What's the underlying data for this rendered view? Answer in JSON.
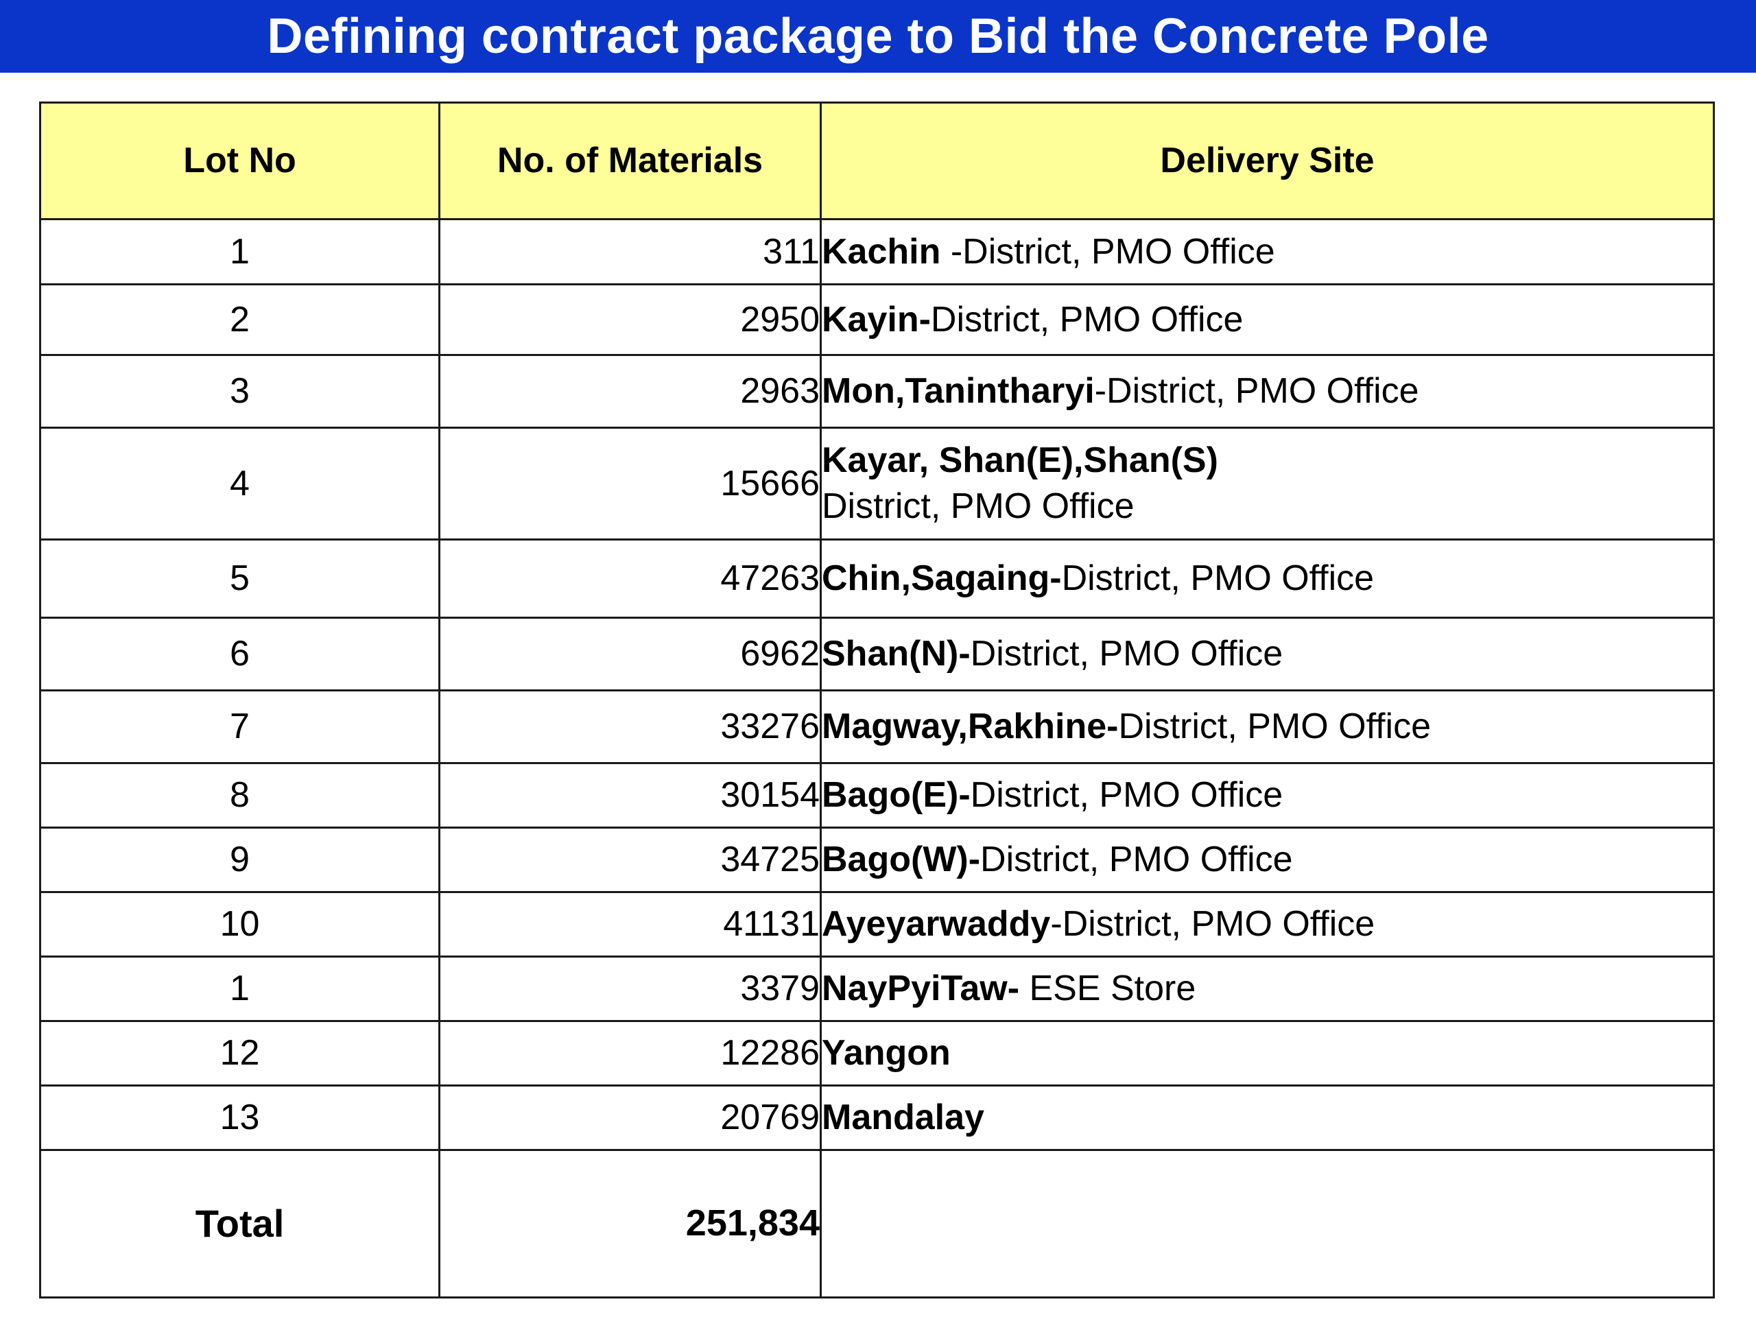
{
  "title": "Defining contract package to Bid the Concrete Pole",
  "table": {
    "headers": {
      "lot_no": "Lot No",
      "materials": "No. of Materials",
      "delivery_site": "Delivery Site"
    },
    "rows": [
      {
        "lot": "1",
        "qty": "311",
        "site_bold": "Kachin",
        "site_rest": " -District, PMO Office",
        "site_line2": ""
      },
      {
        "lot": "2",
        "qty": "2950",
        "site_bold": "Kayin-",
        "site_rest": "District, PMO Office",
        "site_line2": ""
      },
      {
        "lot": "3",
        "qty": "2963",
        "site_bold": "Mon,Tanintharyi",
        "site_rest": "-District, PMO Office",
        "site_line2": ""
      },
      {
        "lot": "4",
        "qty": "15666",
        "site_bold": "Kayar, Shan(E),Shan(S)",
        "site_rest": "",
        "site_line2": "District, PMO Office"
      },
      {
        "lot": "5",
        "qty": "47263",
        "site_bold": "Chin,Sagaing-",
        "site_rest": "District, PMO Office",
        "site_line2": ""
      },
      {
        "lot": "6",
        "qty": "6962",
        "site_bold": "Shan(N)-",
        "site_rest": "District, PMO Office",
        "site_line2": ""
      },
      {
        "lot": "7",
        "qty": "33276",
        "site_bold": "Magway,Rakhine-",
        "site_rest": "District, PMO Office",
        "site_line2": ""
      },
      {
        "lot": "8",
        "qty": "30154",
        "site_bold": "Bago(E)-",
        "site_rest": "District, PMO Office",
        "site_line2": ""
      },
      {
        "lot": "9",
        "qty": "34725",
        "site_bold": "Bago(W)-",
        "site_rest": "District, PMO Office",
        "site_line2": ""
      },
      {
        "lot": "10",
        "qty": "41131",
        "site_bold": "Ayeyarwaddy",
        "site_rest": "-District, PMO Office",
        "site_line2": ""
      },
      {
        "lot": "1",
        "qty": "3379",
        "site_bold": "NayPyiTaw-",
        "site_rest": " ESE Store",
        "site_line2": ""
      },
      {
        "lot": "12",
        "qty": "12286",
        "site_bold": "Yangon",
        "site_rest": "",
        "site_line2": ""
      },
      {
        "lot": "13",
        "qty": "20769",
        "site_bold": "Mandalay",
        "site_rest": "",
        "site_line2": ""
      }
    ],
    "total": {
      "label": "Total",
      "qty": "251,834",
      "site": ""
    }
  },
  "colors": {
    "title_background": "#0a35c8",
    "title_text": "#ffffff",
    "header_background": "#ffff99",
    "border": "#1a1a1a"
  }
}
